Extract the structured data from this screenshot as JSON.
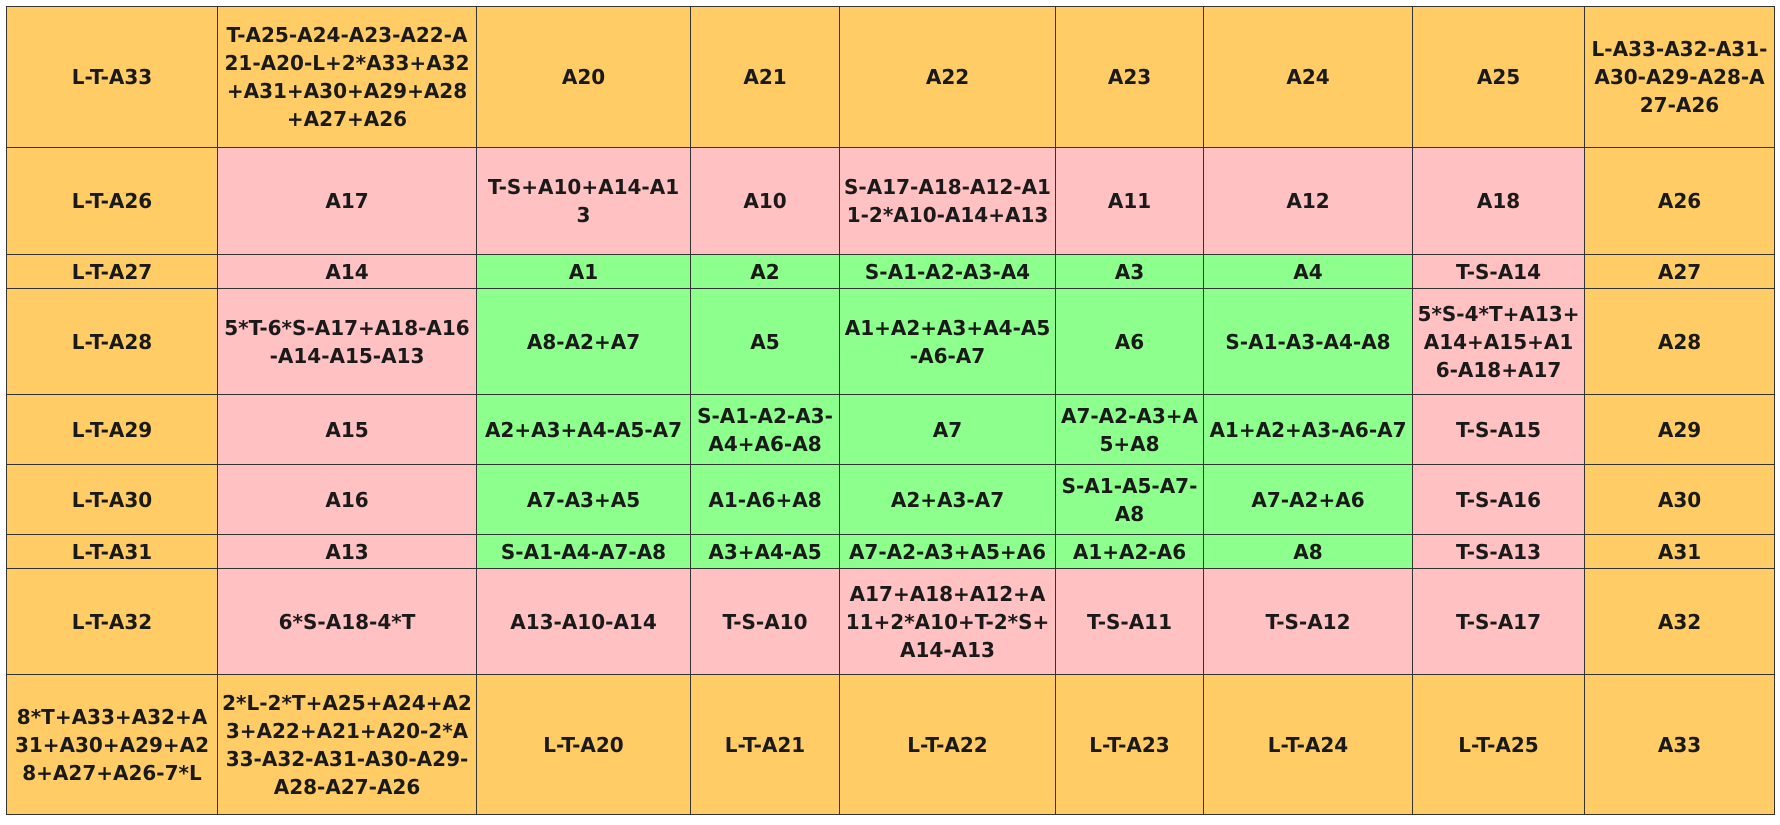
{
  "colors": {
    "outer": "#FFCC66",
    "middle": "#FFC1C1",
    "inner": "#8CFF8C"
  },
  "grid": [
    [
      {
        "text": "L-T-A33",
        "zone": "o"
      },
      {
        "text": "T-A25-A24-A23-A22-A21-A20-L+2*A33+A32+A31+A30+A29+A28+A27+A26",
        "zone": "o"
      },
      {
        "text": "A20",
        "zone": "o"
      },
      {
        "text": "A21",
        "zone": "o"
      },
      {
        "text": "A22",
        "zone": "o"
      },
      {
        "text": "A23",
        "zone": "o"
      },
      {
        "text": "A24",
        "zone": "o"
      },
      {
        "text": "A25",
        "zone": "o"
      },
      {
        "text": "L-A33-A32-A31-A30-A29-A28-A27-A26",
        "zone": "o"
      }
    ],
    [
      {
        "text": "L-T-A26",
        "zone": "o"
      },
      {
        "text": "A17",
        "zone": "p"
      },
      {
        "text": "T-S+A10+A14-A13",
        "zone": "p"
      },
      {
        "text": "A10",
        "zone": "p"
      },
      {
        "text": "S-A17-A18-A12-A11-2*A10-A14+A13",
        "zone": "p"
      },
      {
        "text": "A11",
        "zone": "p"
      },
      {
        "text": "A12",
        "zone": "p"
      },
      {
        "text": "A18",
        "zone": "p"
      },
      {
        "text": "A26",
        "zone": "o"
      }
    ],
    [
      {
        "text": "L-T-A27",
        "zone": "o"
      },
      {
        "text": "A14",
        "zone": "p"
      },
      {
        "text": "A1",
        "zone": "g"
      },
      {
        "text": "A2",
        "zone": "g"
      },
      {
        "text": "S-A1-A2-A3-A4",
        "zone": "g"
      },
      {
        "text": "A3",
        "zone": "g"
      },
      {
        "text": "A4",
        "zone": "g"
      },
      {
        "text": "T-S-A14",
        "zone": "p"
      },
      {
        "text": "A27",
        "zone": "o"
      }
    ],
    [
      {
        "text": "L-T-A28",
        "zone": "o"
      },
      {
        "text": "5*T-6*S-A17+A18-A16-A14-A15-A13",
        "zone": "p"
      },
      {
        "text": "A8-A2+A7",
        "zone": "g"
      },
      {
        "text": "A5",
        "zone": "g"
      },
      {
        "text": "A1+A2+A3+A4-A5-A6-A7",
        "zone": "g"
      },
      {
        "text": "A6",
        "zone": "g"
      },
      {
        "text": "S-A1-A3-A4-A8",
        "zone": "g"
      },
      {
        "text": "5*S-4*T+A13+A14+A15+A16-A18+A17",
        "zone": "p"
      },
      {
        "text": "A28",
        "zone": "o"
      }
    ],
    [
      {
        "text": "L-T-A29",
        "zone": "o"
      },
      {
        "text": "A15",
        "zone": "p"
      },
      {
        "text": "A2+A3+A4-A5-A7",
        "zone": "g"
      },
      {
        "text": "S-A1-A2-A3-A4+A6-A8",
        "zone": "g"
      },
      {
        "text": "A7",
        "zone": "g"
      },
      {
        "text": "A7-A2-A3+A5+A8",
        "zone": "g"
      },
      {
        "text": "A1+A2+A3-A6-A7",
        "zone": "g"
      },
      {
        "text": "T-S-A15",
        "zone": "p"
      },
      {
        "text": "A29",
        "zone": "o"
      }
    ],
    [
      {
        "text": "L-T-A30",
        "zone": "o"
      },
      {
        "text": "A16",
        "zone": "p"
      },
      {
        "text": "A7-A3+A5",
        "zone": "g"
      },
      {
        "text": "A1-A6+A8",
        "zone": "g"
      },
      {
        "text": "A2+A3-A7",
        "zone": "g"
      },
      {
        "text": "S-A1-A5-A7-A8",
        "zone": "g"
      },
      {
        "text": "A7-A2+A6",
        "zone": "g"
      },
      {
        "text": "T-S-A16",
        "zone": "p"
      },
      {
        "text": "A30",
        "zone": "o"
      }
    ],
    [
      {
        "text": "L-T-A31",
        "zone": "o"
      },
      {
        "text": "A13",
        "zone": "p"
      },
      {
        "text": "S-A1-A4-A7-A8",
        "zone": "g"
      },
      {
        "text": "A3+A4-A5",
        "zone": "g"
      },
      {
        "text": "A7-A2-A3+A5+A6",
        "zone": "g"
      },
      {
        "text": "A1+A2-A6",
        "zone": "g"
      },
      {
        "text": "A8",
        "zone": "g"
      },
      {
        "text": "T-S-A13",
        "zone": "p"
      },
      {
        "text": "A31",
        "zone": "o"
      }
    ],
    [
      {
        "text": "L-T-A32",
        "zone": "o"
      },
      {
        "text": "6*S-A18-4*T",
        "zone": "p"
      },
      {
        "text": "A13-A10-A14",
        "zone": "p"
      },
      {
        "text": "T-S-A10",
        "zone": "p"
      },
      {
        "text": "A17+A18+A12+A11+2*A10+T-2*S+A14-A13",
        "zone": "p"
      },
      {
        "text": "T-S-A11",
        "zone": "p"
      },
      {
        "text": "T-S-A12",
        "zone": "p"
      },
      {
        "text": "T-S-A17",
        "zone": "p"
      },
      {
        "text": "A32",
        "zone": "o"
      }
    ],
    [
      {
        "text": "8*T+A33+A32+A31+A30+A29+A28+A27+A26-7*L",
        "zone": "o"
      },
      {
        "text": "2*L-2*T+A25+A24+A23+A22+A21+A20-2*A33-A32-A31-A30-A29-A28-A27-A26",
        "zone": "o"
      },
      {
        "text": "L-T-A20",
        "zone": "o"
      },
      {
        "text": "L-T-A21",
        "zone": "o"
      },
      {
        "text": "L-T-A22",
        "zone": "o"
      },
      {
        "text": "L-T-A23",
        "zone": "o"
      },
      {
        "text": "L-T-A24",
        "zone": "o"
      },
      {
        "text": "L-T-A25",
        "zone": "o"
      },
      {
        "text": "A33",
        "zone": "o"
      }
    ]
  ]
}
